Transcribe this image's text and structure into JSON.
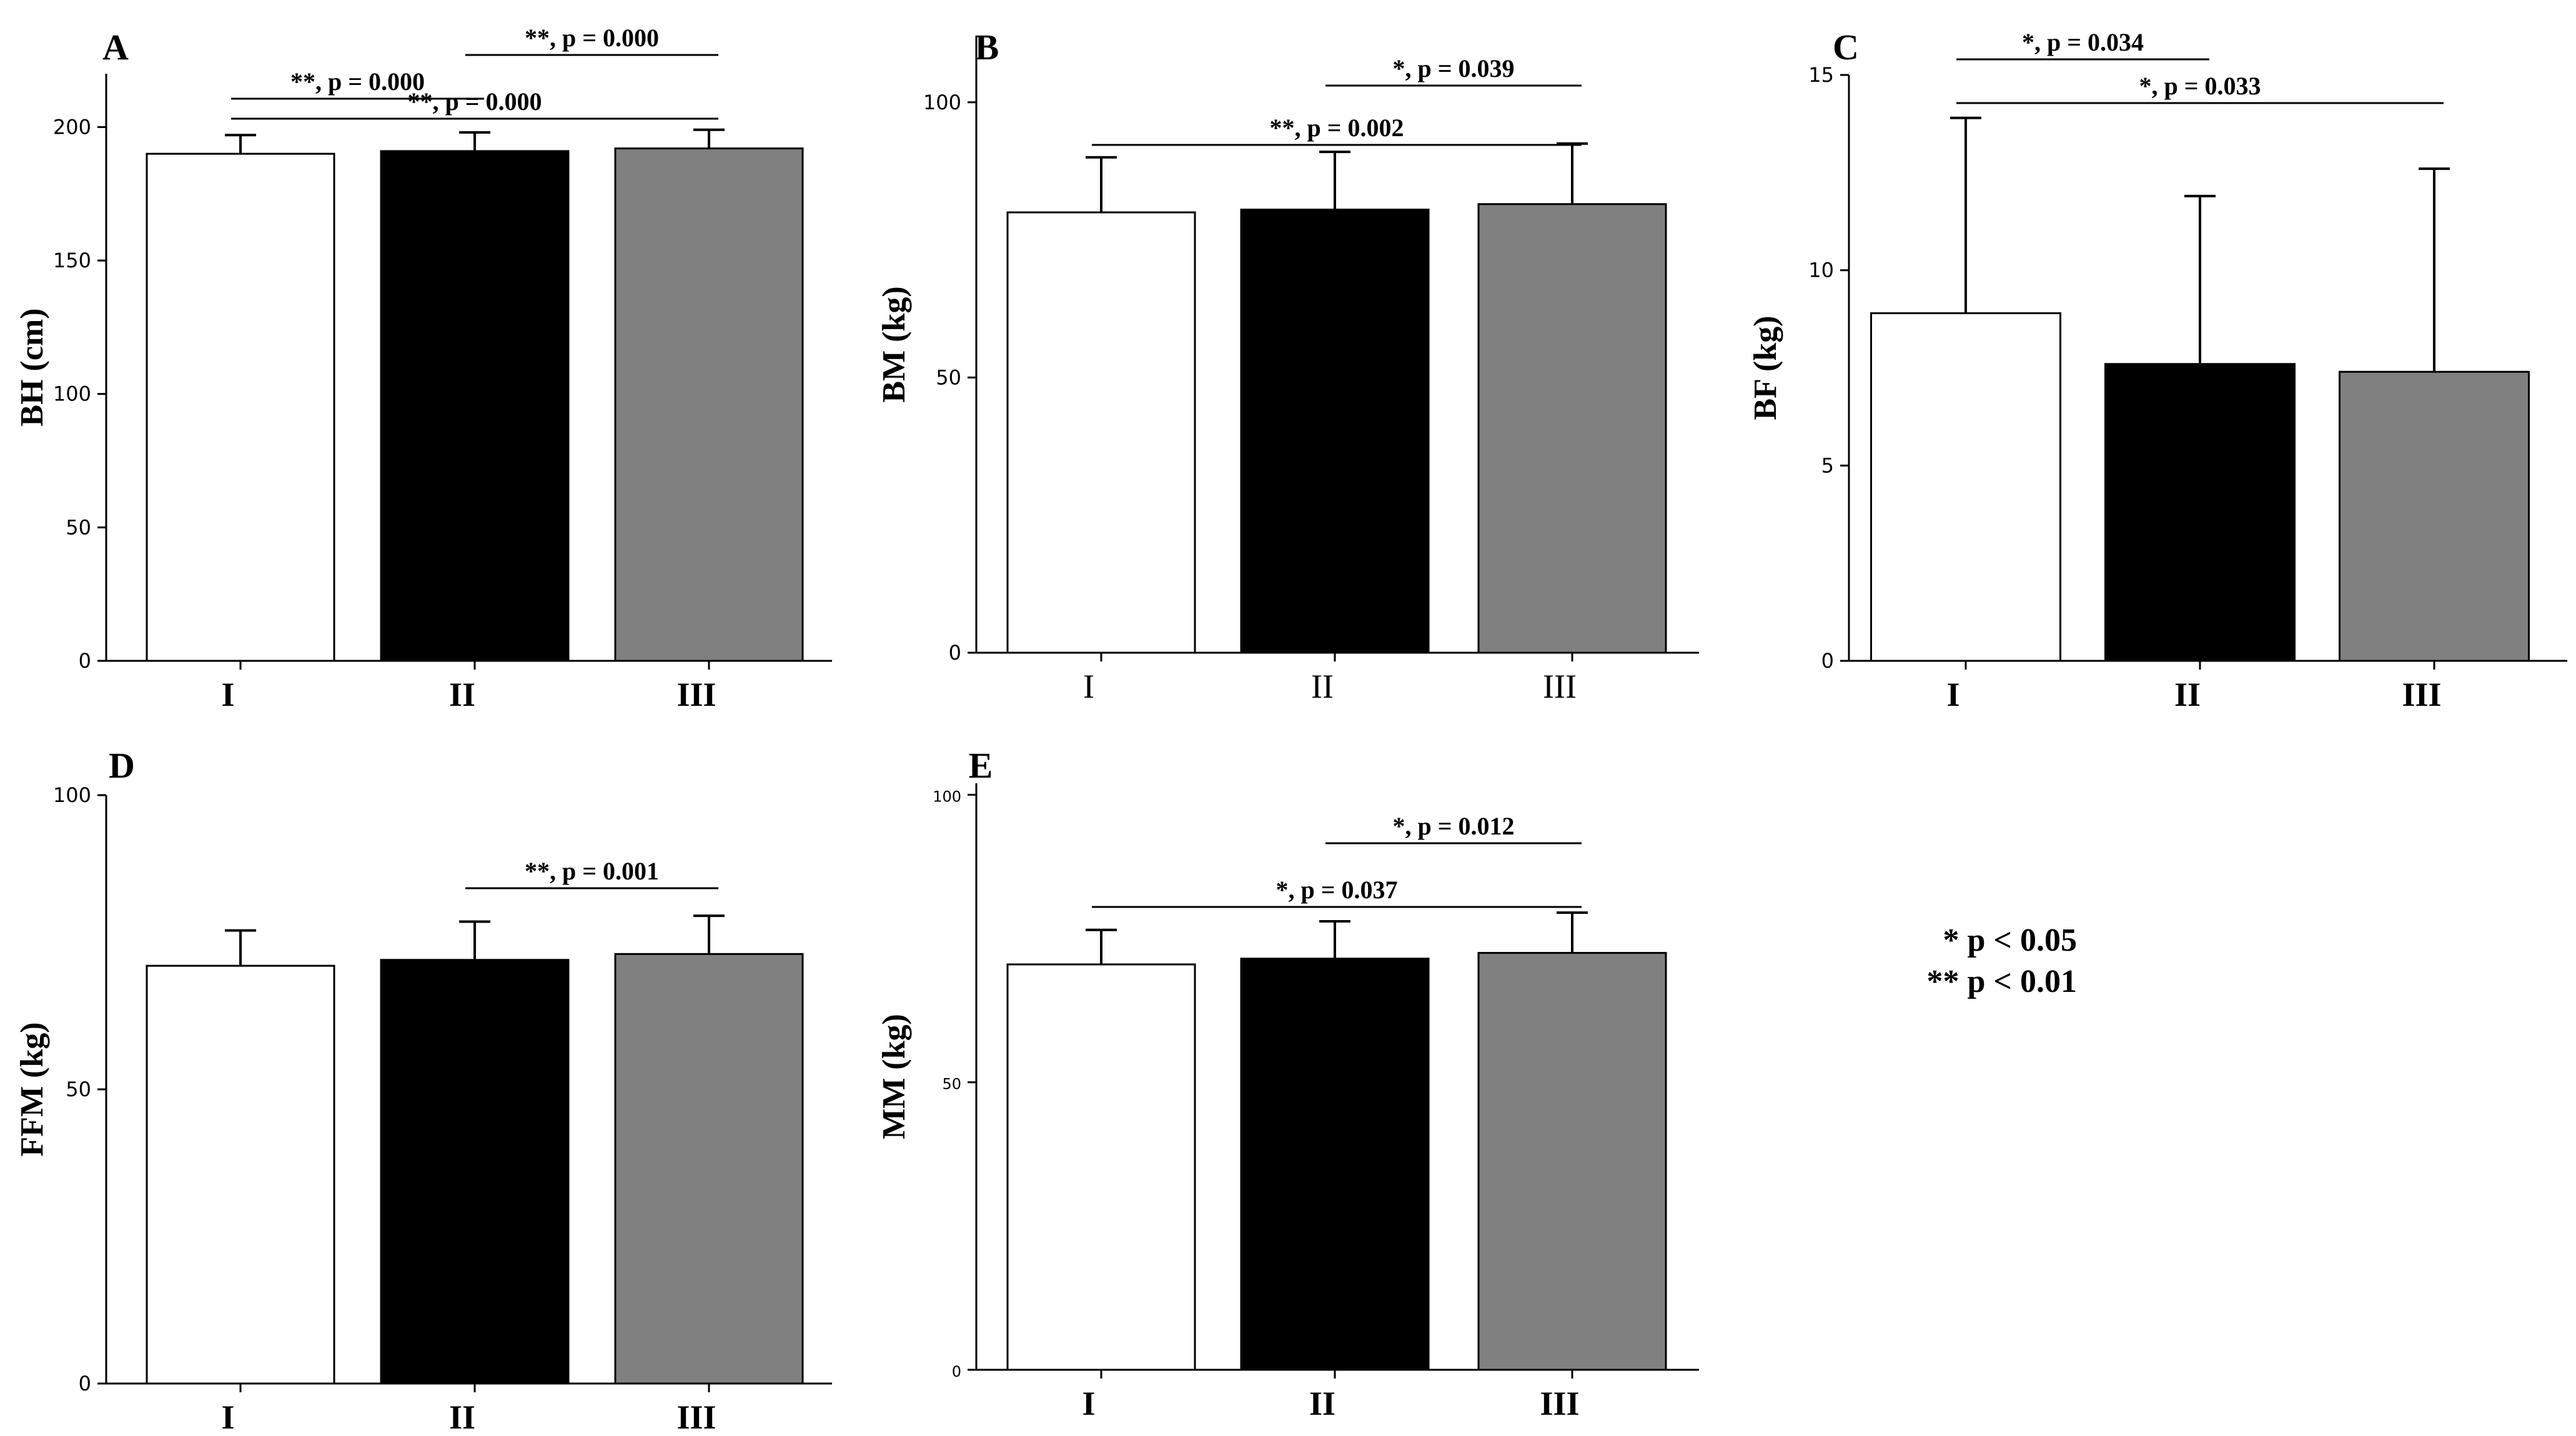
{
  "colors": {
    "I": "#ffffff",
    "II": "#000000",
    "III": "#808080"
  },
  "legend": {
    "line1": "* p < 0.05",
    "line2": "** p < 0.01"
  },
  "chart_data": [
    {
      "panel": "A",
      "type": "bar",
      "ylabel": "BH (cm)",
      "categories": [
        "I",
        "II",
        "III"
      ],
      "bold_categories": true,
      "values": [
        190,
        191,
        192
      ],
      "errors": [
        7,
        7,
        7
      ],
      "ylim": [
        0,
        220
      ],
      "yticks": [
        0,
        50,
        100,
        150,
        200
      ],
      "significance": [
        {
          "from": "I",
          "to": "III",
          "text": "**, p = 0.000",
          "level": 3
        },
        {
          "from": "I",
          "to": "II",
          "text": "**, p = 0.000",
          "level": 2
        },
        {
          "from": "II",
          "to": "III",
          "text": "**, p = 0.000",
          "level": 1
        }
      ]
    },
    {
      "panel": "B",
      "type": "bar",
      "ylabel": "BM (kg)",
      "categories": [
        "I",
        "II",
        "III"
      ],
      "bold_categories": false,
      "values": [
        80,
        80.5,
        81.5
      ],
      "errors": [
        10,
        10.5,
        11
      ],
      "ylim": [
        0,
        112
      ],
      "yticks": [
        0,
        50,
        100
      ],
      "significance": [
        {
          "from": "I",
          "to": "III",
          "text": "**, p = 0.002",
          "level": 2
        },
        {
          "from": "II",
          "to": "III",
          "text": "*, p = 0.039",
          "level": 1
        }
      ]
    },
    {
      "panel": "C",
      "type": "bar",
      "ylabel": "BF (kg)",
      "categories": [
        "I",
        "II",
        "III"
      ],
      "bold_categories": true,
      "values": [
        8.9,
        7.6,
        7.4
      ],
      "errors": [
        5.0,
        4.3,
        5.2
      ],
      "ylim": [
        0,
        15
      ],
      "yticks": [
        0,
        5,
        10,
        15
      ],
      "significance": [
        {
          "from": "I",
          "to": "III",
          "text": "*, p = 0.033",
          "level": 2
        },
        {
          "from": "I",
          "to": "II",
          "text": "*, p = 0.034",
          "level": 1
        }
      ]
    },
    {
      "panel": "D",
      "type": "bar",
      "ylabel": "FFM (kg)",
      "categories": [
        "I",
        "II",
        "III"
      ],
      "bold_categories": true,
      "values": [
        71,
        72,
        73
      ],
      "errors": [
        6,
        6.5,
        6.5
      ],
      "ylim": [
        0,
        100
      ],
      "yticks": [
        0,
        50,
        100
      ],
      "significance": [
        {
          "from": "II",
          "to": "III",
          "text": "**, p = 0.001",
          "level": 1
        }
      ]
    },
    {
      "panel": "E",
      "type": "bar",
      "ylabel": "MM (kg)",
      "categories": [
        "I",
        "II",
        "III"
      ],
      "bold_categories": true,
      "values": [
        70.5,
        71.5,
        72.5
      ],
      "errors": [
        6,
        6.5,
        7
      ],
      "ylim": [
        0,
        102
      ],
      "yticks": [
        0,
        50,
        100
      ],
      "significance": [
        {
          "from": "I",
          "to": "III",
          "text": "*, p = 0.037",
          "level": 2
        },
        {
          "from": "II",
          "to": "III",
          "text": "*, p = 0.012",
          "level": 1
        }
      ]
    }
  ]
}
